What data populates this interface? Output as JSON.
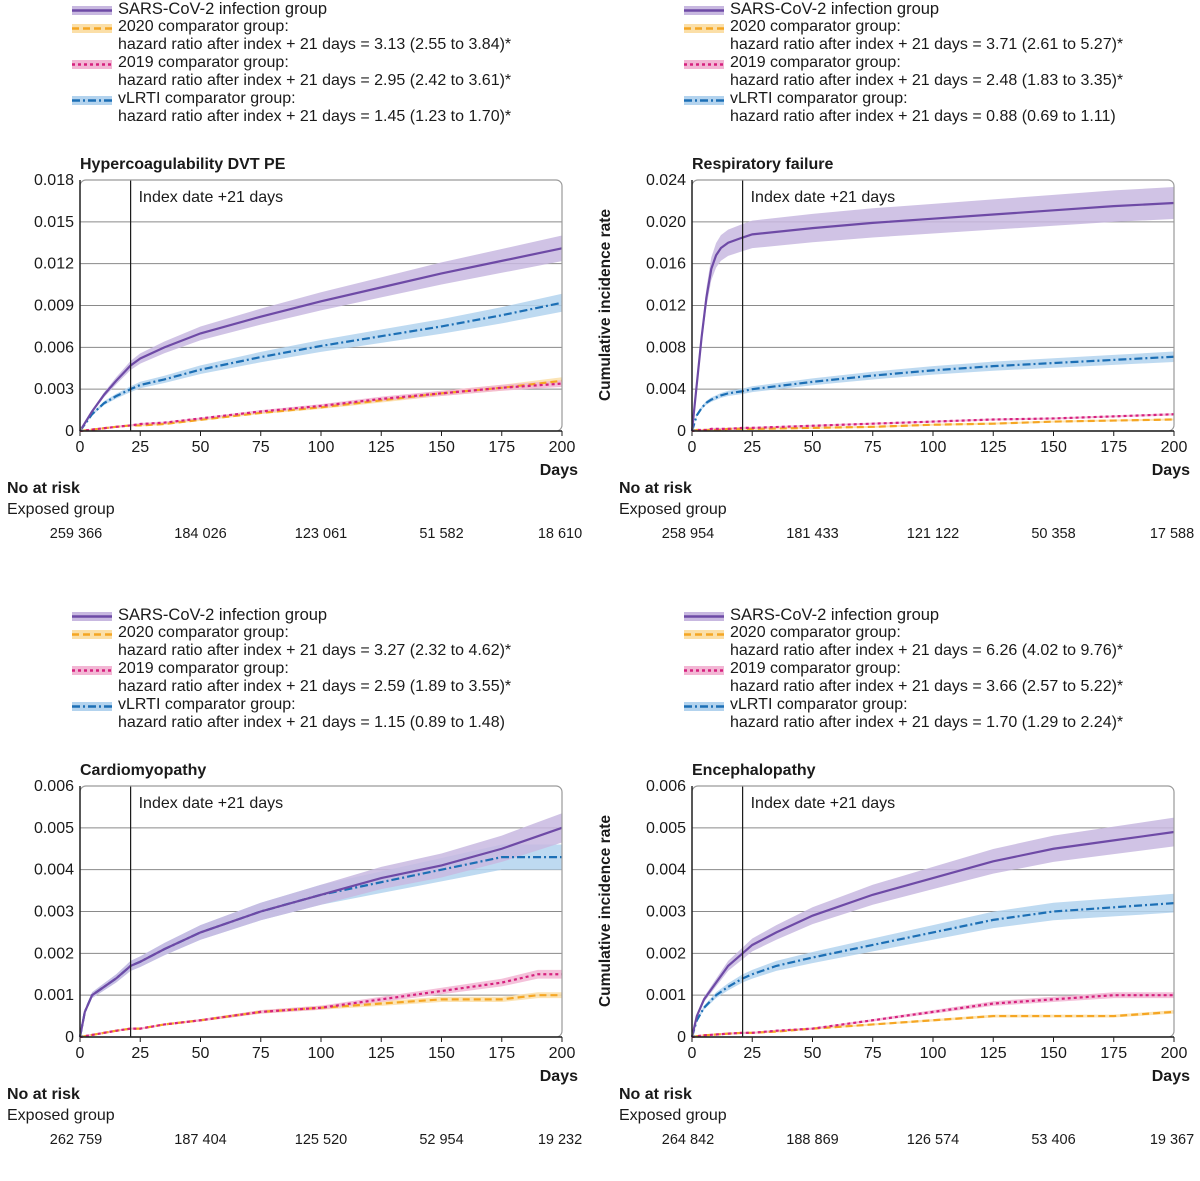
{
  "colors": {
    "sars": "#6e4aa6",
    "sars_band": "#c8b8e0",
    "c2020": "#f5a623",
    "c2020_band": "#fbdfa8",
    "c2019": "#d6217e",
    "c2019_band": "#f2b6d4",
    "vlrti": "#1c6fb5",
    "vlrti_band": "#b3d3ee",
    "grid": "#8a8a8a",
    "axis": "#1a1a1a"
  },
  "legend_labels": {
    "sars": "SARS-CoV-2 infection group",
    "c2020": "2020 comparator group:",
    "c2019": "2019 comparator group:",
    "vlrti": "vLRTI comparator group:"
  },
  "common": {
    "ylabel": "Cumulative incidence rate",
    "xlabel": "Days",
    "index_label": "Index date +21 days",
    "risk_title": "No at risk",
    "risk_group": "Exposed group"
  },
  "chart_data": [
    {
      "type": "line",
      "title": "Hypercoagulability DVT PE",
      "xlabel": "Days",
      "ylabel": "Cumulative incidence rate",
      "xlim": [
        0,
        200
      ],
      "ylim": [
        0,
        0.018
      ],
      "x_ticks": [
        "0",
        "25",
        "50",
        "75",
        "100",
        "125",
        "150",
        "175",
        "200"
      ],
      "y_ticks": [
        "0",
        "0.003",
        "0.006",
        "0.009",
        "0.012",
        "0.015",
        "0.018"
      ],
      "y_tick_values": [
        0,
        0.003,
        0.006,
        0.009,
        0.012,
        0.015,
        0.018
      ],
      "index_day": 21,
      "legend_hr": {
        "c2020": "hazard ratio after index + 21 days = 3.13 (2.55 to 3.84)*",
        "c2019": "hazard ratio after index + 21 days = 2.95 (2.42 to 3.61)*",
        "vlrti": "hazard ratio after index + 21 days = 1.45 (1.23 to 1.70)*"
      },
      "x": [
        0,
        5,
        10,
        15,
        21,
        25,
        35,
        50,
        75,
        100,
        125,
        150,
        175,
        200
      ],
      "series": [
        {
          "key": "sars",
          "name": "SARS-CoV-2 infection group",
          "values": [
            0,
            0.0014,
            0.0026,
            0.0036,
            0.0047,
            0.0052,
            0.006,
            0.007,
            0.0082,
            0.0093,
            0.0103,
            0.0113,
            0.0122,
            0.0131
          ]
        },
        {
          "key": "vlrti",
          "name": "vLRTI comparator group",
          "values": [
            0,
            0.0012,
            0.002,
            0.0025,
            0.003,
            0.0033,
            0.0037,
            0.0044,
            0.0053,
            0.0061,
            0.0068,
            0.0075,
            0.0083,
            0.0092
          ]
        },
        {
          "key": "c2019",
          "name": "2019 comparator group",
          "values": [
            0,
            0.0001,
            0.0002,
            0.0003,
            0.0004,
            0.0005,
            0.0006,
            0.0009,
            0.0014,
            0.0018,
            0.0023,
            0.0027,
            0.0031,
            0.0034
          ]
        },
        {
          "key": "c2020",
          "name": "2020 comparator group",
          "values": [
            0,
            0.0001,
            0.0002,
            0.0003,
            0.0004,
            0.0004,
            0.0005,
            0.0008,
            0.0013,
            0.0017,
            0.0022,
            0.0027,
            0.0031,
            0.0036
          ]
        }
      ],
      "at_risk_days": [
        0,
        50,
        100,
        150,
        200
      ],
      "at_risk": [
        "259 366",
        "184 026",
        "123 061",
        "51 582",
        "18 610"
      ]
    },
    {
      "type": "line",
      "title": "Respiratory failure",
      "xlabel": "Days",
      "ylabel": "Cumulative incidence rate",
      "xlim": [
        0,
        200
      ],
      "ylim": [
        0,
        0.024
      ],
      "x_ticks": [
        "0",
        "25",
        "50",
        "75",
        "100",
        "125",
        "150",
        "175",
        "200"
      ],
      "y_ticks": [
        "0",
        "0.004",
        "0.008",
        "0.012",
        "0.016",
        "0.020",
        "0.024"
      ],
      "y_tick_values": [
        0,
        0.004,
        0.008,
        0.012,
        0.016,
        0.02,
        0.024
      ],
      "index_day": 21,
      "legend_hr": {
        "c2020": "hazard ratio after index + 21 days = 3.71 (2.61 to 5.27)*",
        "c2019": "hazard ratio after index + 21 days = 2.48 (1.83 to 3.35)*",
        "vlrti": "hazard ratio after index + 21 days = 0.88 (0.69 to 1.11)"
      },
      "x": [
        0,
        2,
        4,
        6,
        8,
        10,
        12,
        15,
        21,
        25,
        50,
        75,
        100,
        125,
        150,
        175,
        200
      ],
      "series": [
        {
          "key": "sars",
          "name": "SARS-CoV-2 infection group",
          "values": [
            0,
            0.0045,
            0.009,
            0.0128,
            0.0155,
            0.0168,
            0.0175,
            0.018,
            0.0185,
            0.0188,
            0.0194,
            0.0199,
            0.0203,
            0.0207,
            0.0211,
            0.0215,
            0.0218
          ]
        },
        {
          "key": "vlrti",
          "name": "vLRTI comparator group",
          "values": [
            0,
            0.0015,
            0.0022,
            0.0027,
            0.003,
            0.0032,
            0.0034,
            0.0036,
            0.0038,
            0.004,
            0.0047,
            0.0053,
            0.0058,
            0.0062,
            0.0065,
            0.0068,
            0.0071
          ]
        },
        {
          "key": "c2019",
          "name": "2019 comparator group",
          "values": [
            0,
            0.0001,
            0.0001,
            0.0001,
            0.0002,
            0.0002,
            0.0002,
            0.0002,
            0.0003,
            0.0003,
            0.0005,
            0.0007,
            0.0009,
            0.0011,
            0.0012,
            0.0014,
            0.0016
          ]
        },
        {
          "key": "c2020",
          "name": "2020 comparator group",
          "values": [
            0,
            0.0001,
            0.0001,
            0.0001,
            0.0001,
            0.0001,
            0.0001,
            0.0002,
            0.0002,
            0.0002,
            0.0003,
            0.0004,
            0.0006,
            0.0007,
            0.0009,
            0.001,
            0.0011
          ]
        }
      ],
      "at_risk_days": [
        0,
        50,
        100,
        150,
        200
      ],
      "at_risk": [
        "258 954",
        "181 433",
        "121 122",
        "50 358",
        "17 588"
      ]
    },
    {
      "type": "line",
      "title": "Cardiomyopathy",
      "xlabel": "Days",
      "ylabel": "Cumulative incidence rate",
      "xlim": [
        0,
        200
      ],
      "ylim": [
        0,
        0.006
      ],
      "x_ticks": [
        "0",
        "25",
        "50",
        "75",
        "100",
        "125",
        "150",
        "175",
        "200"
      ],
      "y_ticks": [
        "0",
        "0.001",
        "0.002",
        "0.003",
        "0.004",
        "0.005",
        "0.006"
      ],
      "y_tick_values": [
        0,
        0.001,
        0.002,
        0.003,
        0.004,
        0.005,
        0.006
      ],
      "index_day": 21,
      "legend_hr": {
        "c2020": "hazard ratio after index + 21 days = 3.27 (2.32 to 4.62)*",
        "c2019": "hazard ratio after index + 21 days = 2.59 (1.89 to 3.55)*",
        "vlrti": "hazard ratio after index + 21 days = 1.15 (0.89 to 1.48)"
      },
      "x": [
        0,
        2,
        5,
        10,
        15,
        21,
        25,
        35,
        50,
        75,
        100,
        125,
        150,
        175,
        190,
        200
      ],
      "series": [
        {
          "key": "sars",
          "name": "SARS-CoV-2 infection group",
          "values": [
            0,
            0.0006,
            0.001,
            0.0012,
            0.0014,
            0.0017,
            0.0018,
            0.0021,
            0.0025,
            0.003,
            0.0034,
            0.0038,
            0.0041,
            0.0045,
            0.0048,
            0.005
          ]
        },
        {
          "key": "vlrti",
          "name": "vLRTI comparator group",
          "values": [
            0,
            0.0006,
            0.001,
            0.0012,
            0.0014,
            0.0017,
            0.0018,
            0.0021,
            0.0025,
            0.003,
            0.0034,
            0.0037,
            0.004,
            0.0043,
            0.0043,
            0.0043
          ]
        },
        {
          "key": "c2019",
          "name": "2019 comparator group",
          "values": [
            0,
            2e-05,
            5e-05,
            0.0001,
            0.00015,
            0.0002,
            0.0002,
            0.0003,
            0.0004,
            0.0006,
            0.0007,
            0.0009,
            0.0011,
            0.0013,
            0.0015,
            0.0015
          ]
        },
        {
          "key": "c2020",
          "name": "2020 comparator group",
          "values": [
            0,
            2e-05,
            5e-05,
            0.0001,
            0.00015,
            0.0002,
            0.0002,
            0.0003,
            0.0004,
            0.0006,
            0.0007,
            0.0008,
            0.0009,
            0.0009,
            0.001,
            0.001
          ]
        }
      ],
      "at_risk_days": [
        0,
        50,
        100,
        150,
        200
      ],
      "at_risk": [
        "262 759",
        "187 404",
        "125 520",
        "52 954",
        "19 232"
      ]
    },
    {
      "type": "line",
      "title": "Encephalopathy",
      "xlabel": "Days",
      "ylabel": "Cumulative incidence rate",
      "xlim": [
        0,
        200
      ],
      "ylim": [
        0,
        0.006
      ],
      "x_ticks": [
        "0",
        "25",
        "50",
        "75",
        "100",
        "125",
        "150",
        "175",
        "200"
      ],
      "y_ticks": [
        "0",
        "0.001",
        "0.002",
        "0.003",
        "0.004",
        "0.005",
        "0.006"
      ],
      "y_tick_values": [
        0,
        0.001,
        0.002,
        0.003,
        0.004,
        0.005,
        0.006
      ],
      "index_day": 21,
      "legend_hr": {
        "c2020": "hazard ratio after index + 21 days = 6.26 (4.02 to 9.76)*",
        "c2019": "hazard ratio after index + 21 days = 3.66 (2.57 to 5.22)*",
        "vlrti": "hazard ratio after index + 21 days = 1.70 (1.29 to 2.24)*"
      },
      "x": [
        0,
        2,
        5,
        10,
        15,
        21,
        25,
        35,
        50,
        75,
        100,
        125,
        150,
        175,
        200
      ],
      "series": [
        {
          "key": "sars",
          "name": "SARS-CoV-2 infection group",
          "values": [
            0,
            0.0005,
            0.0009,
            0.0013,
            0.0017,
            0.002,
            0.0022,
            0.0025,
            0.0029,
            0.0034,
            0.0038,
            0.0042,
            0.0045,
            0.0047,
            0.0049
          ]
        },
        {
          "key": "vlrti",
          "name": "vLRTI comparator group",
          "values": [
            0,
            0.0004,
            0.0007,
            0.001,
            0.0012,
            0.0014,
            0.0015,
            0.0017,
            0.0019,
            0.0022,
            0.0025,
            0.0028,
            0.003,
            0.0031,
            0.0032
          ]
        },
        {
          "key": "c2019",
          "name": "2019 comparator group",
          "values": [
            0,
            2e-05,
            4e-05,
            6e-05,
            8e-05,
            0.0001,
            0.0001,
            0.00015,
            0.0002,
            0.0004,
            0.0006,
            0.0008,
            0.0009,
            0.001,
            0.001
          ]
        },
        {
          "key": "c2020",
          "name": "2020 comparator group",
          "values": [
            0,
            2e-05,
            4e-05,
            6e-05,
            8e-05,
            0.0001,
            0.0001,
            0.00013,
            0.0002,
            0.0003,
            0.0004,
            0.0005,
            0.0005,
            0.0005,
            0.0006
          ]
        }
      ],
      "at_risk_days": [
        0,
        50,
        100,
        150,
        200
      ],
      "at_risk": [
        "264 842",
        "188 869",
        "126 574",
        "53 406",
        "19 367"
      ]
    }
  ]
}
